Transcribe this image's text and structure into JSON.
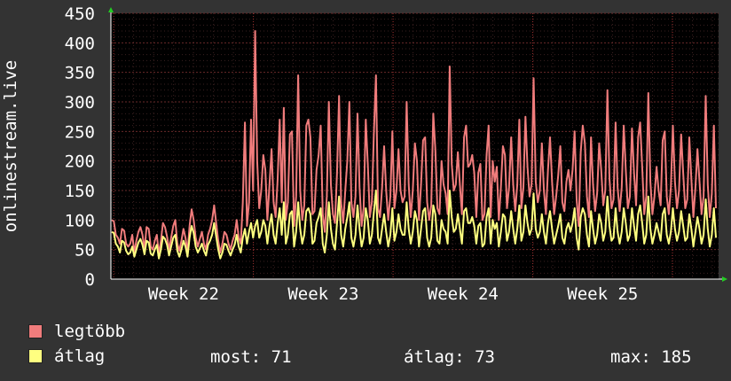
{
  "chart_data": {
    "type": "line",
    "ylabel": "onlinestream.live",
    "ylim": [
      0,
      450
    ],
    "y_ticks": [
      0,
      50,
      100,
      150,
      200,
      250,
      300,
      350,
      400,
      450
    ],
    "x_ticks": [
      "Week 22",
      "Week 23",
      "Week 24",
      "Week 25"
    ],
    "background": "#000000",
    "grid": true,
    "series": [
      {
        "name": "legtöbb",
        "color": "#f07c7c",
        "values": [
          100,
          98,
          75,
          70,
          60,
          85,
          82,
          60,
          55,
          60,
          75,
          45,
          65,
          80,
          88,
          75,
          50,
          88,
          85,
          55,
          50,
          65,
          75,
          42,
          65,
          95,
          88,
          72,
          50,
          70,
          90,
          100,
          60,
          48,
          65,
          85,
          70,
          45,
          90,
          118,
          100,
          70,
          55,
          68,
          80,
          60,
          50,
          75,
          85,
          100,
          125,
          95,
          65,
          45,
          60,
          80,
          75,
          60,
          50,
          65,
          75,
          100,
          70,
          60,
          130,
          265,
          90,
          130,
          270,
          150,
          420,
          200,
          120,
          150,
          210,
          185,
          100,
          160,
          220,
          130,
          105,
          170,
          270,
          130,
          290,
          100,
          130,
          245,
          250,
          90,
          140,
          345,
          150,
          100,
          125,
          260,
          270,
          240,
          110,
          115,
          185,
          210,
          260,
          110,
          80,
          140,
          300,
          160,
          110,
          95,
          180,
          310,
          130,
          95,
          150,
          200,
          300,
          130,
          105,
          140,
          280,
          155,
          90,
          120,
          270,
          195,
          105,
          130,
          250,
          345,
          120,
          105,
          155,
          225,
          150,
          100,
          140,
          250,
          120,
          150,
          220,
          150,
          130,
          140,
          300,
          160,
          105,
          150,
          230,
          200,
          100,
          160,
          235,
          240,
          130,
          100,
          125,
          280,
          220,
          120,
          110,
          200,
          160,
          145,
          110,
          360,
          195,
          150,
          160,
          215,
          160,
          110,
          240,
          260,
          190,
          195,
          210,
          180,
          105,
          180,
          195,
          100,
          110,
          210,
          260,
          105,
          200,
          165,
          190,
          100,
          155,
          225,
          210,
          120,
          155,
          240,
          160,
          115,
          160,
          270,
          120,
          155,
          275,
          190,
          140,
          160,
          340,
          165,
          130,
          150,
          230,
          150,
          110,
          185,
          240,
          165,
          110,
          140,
          175,
          225,
          130,
          115,
          165,
          185,
          150,
          185,
          250,
          135,
          90,
          215,
          260,
          230,
          140,
          105,
          240,
          160,
          115,
          145,
          230,
          185,
          125,
          150,
          320,
          170,
          120,
          135,
          265,
          155,
          115,
          155,
          260,
          185,
          120,
          140,
          255,
          180,
          125,
          240,
          265,
          190,
          110,
          140,
          315,
          165,
          110,
          140,
          190,
          150,
          125,
          235,
          250,
          140,
          110,
          155,
          260,
          165,
          120,
          150,
          245,
          180,
          120,
          135,
          240,
          170,
          105,
          155,
          220,
          165,
          110,
          140,
          310,
          160,
          105,
          145,
          260,
          120
        ]
      },
      {
        "name": "átlag",
        "color": "#ffff80",
        "values": [
          80,
          78,
          60,
          55,
          45,
          65,
          62,
          48,
          42,
          45,
          55,
          38,
          50,
          62,
          68,
          58,
          42,
          65,
          62,
          43,
          40,
          50,
          58,
          35,
          50,
          72,
          68,
          58,
          40,
          55,
          70,
          75,
          48,
          38,
          50,
          65,
          55,
          38,
          70,
          90,
          78,
          55,
          45,
          52,
          60,
          48,
          40,
          58,
          65,
          75,
          95,
          72,
          50,
          35,
          45,
          60,
          58,
          48,
          40,
          50,
          58,
          75,
          55,
          45,
          70,
          85,
          60,
          80,
          95,
          70,
          90,
          100,
          70,
          80,
          100,
          90,
          60,
          90,
          110,
          75,
          60,
          95,
          120,
          75,
          130,
          60,
          75,
          110,
          115,
          55,
          80,
          130,
          85,
          60,
          75,
          115,
          120,
          110,
          60,
          65,
          95,
          105,
          120,
          60,
          45,
          75,
          130,
          85,
          60,
          50,
          95,
          140,
          75,
          55,
          85,
          105,
          130,
          70,
          55,
          75,
          125,
          85,
          55,
          70,
          120,
          100,
          60,
          75,
          115,
          150,
          70,
          60,
          85,
          110,
          80,
          55,
          75,
          120,
          65,
          80,
          110,
          85,
          75,
          75,
          130,
          85,
          60,
          80,
          115,
          100,
          55,
          85,
          115,
          120,
          70,
          55,
          70,
          125,
          110,
          65,
          60,
          100,
          85,
          80,
          60,
          150,
          105,
          80,
          85,
          110,
          85,
          60,
          115,
          120,
          95,
          95,
          105,
          90,
          60,
          90,
          95,
          55,
          60,
          105,
          120,
          60,
          100,
          85,
          95,
          55,
          80,
          110,
          105,
          65,
          80,
          115,
          85,
          60,
          85,
          125,
          65,
          80,
          125,
          95,
          75,
          85,
          145,
          85,
          70,
          80,
          110,
          80,
          60,
          95,
          115,
          85,
          60,
          75,
          90,
          110,
          70,
          60,
          85,
          95,
          80,
          95,
          120,
          70,
          50,
          105,
          120,
          110,
          75,
          55,
          115,
          85,
          60,
          75,
          110,
          95,
          65,
          80,
          140,
          90,
          65,
          70,
          120,
          80,
          60,
          80,
          120,
          95,
          65,
          75,
          120,
          90,
          65,
          110,
          125,
          95,
          60,
          75,
          140,
          85,
          60,
          75,
          95,
          80,
          65,
          110,
          120,
          75,
          60,
          80,
          120,
          85,
          65,
          80,
          115,
          90,
          65,
          70,
          110,
          85,
          55,
          80,
          105,
          85,
          60,
          75,
          135,
          85,
          55,
          75,
          120,
          70
        ]
      }
    ]
  },
  "legend": {
    "items": [
      {
        "label": "legtöbb",
        "color": "#f07c7c"
      },
      {
        "label": "átlag",
        "color": "#ffff80"
      }
    ],
    "now": "most: 71",
    "avg": "átlag: 73",
    "max": "max: 185"
  }
}
